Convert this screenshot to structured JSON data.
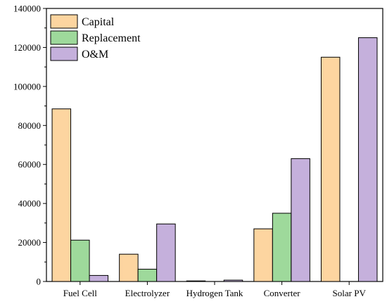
{
  "chart_data": {
    "type": "bar",
    "title": "",
    "xlabel": "",
    "ylabel": "",
    "categories": [
      "Fuel Cell",
      "Electrolyzer",
      "Hydrogen Tank",
      "Converter",
      "Solar PV"
    ],
    "series": [
      {
        "name": "Capital",
        "color": "#fdd5a0",
        "values": [
          88500,
          14000,
          300,
          27000,
          115000
        ]
      },
      {
        "name": "Replacement",
        "color": "#9ed99b",
        "values": [
          21200,
          6300,
          0,
          35000,
          0
        ]
      },
      {
        "name": "O&M",
        "color": "#c5b0dc",
        "values": [
          3100,
          29500,
          700,
          63000,
          125000
        ]
      }
    ],
    "ylim": [
      0,
      140000
    ],
    "yticks": [
      "0",
      "20000",
      "40000",
      "60000",
      "80000",
      "100000",
      "120000",
      "140000"
    ],
    "legend_position": "top-left",
    "grid": false
  }
}
